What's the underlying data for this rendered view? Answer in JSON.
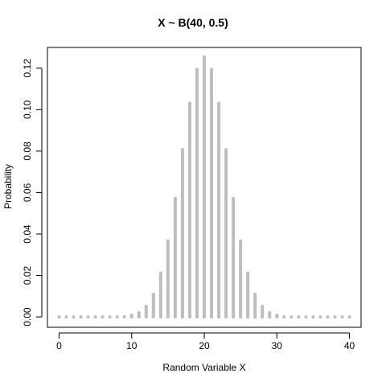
{
  "chart_data": {
    "type": "bar",
    "title": "X ~ B(40, 0.5)",
    "xlabel": "Random Variable X",
    "ylabel": "Probability",
    "xlim": [
      -1.6,
      41.6
    ],
    "ylim": [
      -0.005,
      0.13
    ],
    "x_ticks": [
      0,
      10,
      20,
      30,
      40
    ],
    "y_ticks": [
      0.0,
      0.02,
      0.04,
      0.06,
      0.08,
      0.1,
      0.12
    ],
    "y_tick_labels": [
      "0.00",
      "0.02",
      "0.04",
      "0.06",
      "0.08",
      "0.10",
      "0.12"
    ],
    "bar_color": "#bebebe",
    "x": [
      0,
      1,
      2,
      3,
      4,
      5,
      6,
      7,
      8,
      9,
      10,
      11,
      12,
      13,
      14,
      15,
      16,
      17,
      18,
      19,
      20,
      21,
      22,
      23,
      24,
      25,
      26,
      27,
      28,
      29,
      30,
      31,
      32,
      33,
      34,
      35,
      36,
      37,
      38,
      39,
      40
    ],
    "values": [
      0.0,
      0.0,
      0.0,
      0.0,
      0.0,
      0.0,
      0.0,
      0.0,
      0.0,
      0.0001,
      0.0008,
      0.0021,
      0.0051,
      0.0109,
      0.0211,
      0.0366,
      0.0572,
      0.0807,
      0.1031,
      0.1194,
      0.1254,
      0.1194,
      0.1031,
      0.0807,
      0.0572,
      0.0366,
      0.0211,
      0.0109,
      0.0051,
      0.0021,
      0.0008,
      0.0001,
      0.0,
      0.0,
      0.0,
      0.0,
      0.0,
      0.0,
      0.0,
      0.0,
      0.0
    ]
  }
}
